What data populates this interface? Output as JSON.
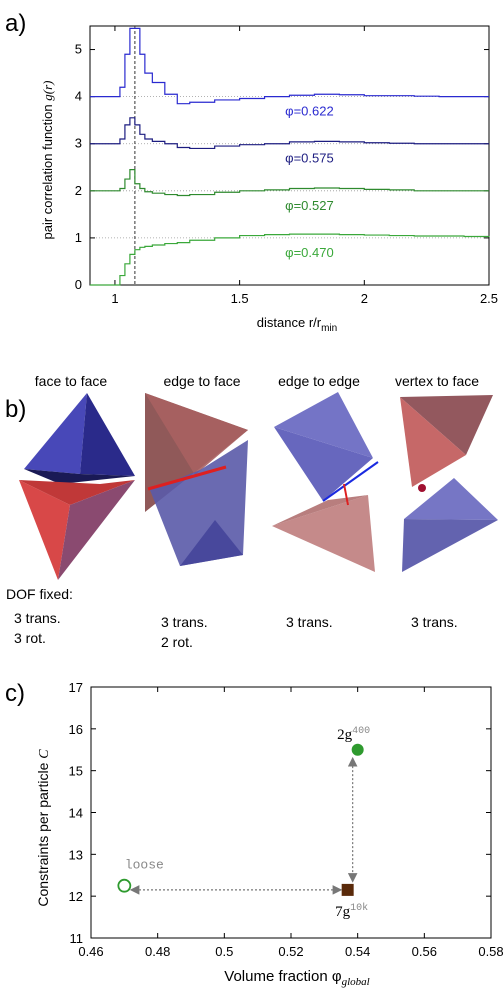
{
  "panel_a": {
    "label": "a)",
    "ylabel_text": "pair correlation function ",
    "ylabel_var": "g(r)",
    "xlabel": "distance r/r",
    "xlabel_sub": "min",
    "yticks": [
      "0",
      "1",
      "2",
      "3",
      "4",
      "5"
    ],
    "xticks": [
      "1",
      "1.5",
      "2",
      "2.5"
    ]
  },
  "panel_b": {
    "label": "b)",
    "headers": [
      "face to face",
      "edge to face",
      "edge to edge",
      "vertex to face"
    ],
    "dof_title": "DOF fixed:",
    "dof": [
      {
        "line1": "3 trans.",
        "line2": "3 rot."
      },
      {
        "line1": "3 trans.",
        "line2": "2 rot."
      },
      {
        "line1": "3 trans.",
        "line2": ""
      },
      {
        "line1": "3 trans.",
        "line2": ""
      }
    ]
  },
  "panel_c": {
    "label": "c)",
    "ylabel_text": "Constraints per particle ",
    "ylabel_var": "C",
    "xlabel_text": "Volume fraction φ",
    "xlabel_sub": "global",
    "xticks": [
      "0.46",
      "0.48",
      "0.5",
      "0.52",
      "0.54",
      "0.56",
      "0.58"
    ],
    "yticks": [
      "11",
      "12",
      "13",
      "14",
      "15",
      "16",
      "17"
    ],
    "labels": {
      "loose": "loose",
      "g400_base": "2g",
      "g400_sup": "400",
      "g10k_base": "7g",
      "g10k_sup": "10k"
    }
  },
  "colors": {
    "blue": "#2a2ad0",
    "navy": "#1c1c80",
    "green_dark": "#2e8a2e",
    "green": "#3aa83a",
    "marker_green": "#2e9a2e",
    "marker_brown": "#5a2a0a"
  },
  "chart_data": [
    {
      "type": "line",
      "panel": "a",
      "xlabel": "distance r/r_min",
      "ylabel": "pair correlation function g(r)",
      "xlim": [
        0.9,
        2.5
      ],
      "ylim": [
        0,
        5.5
      ],
      "vline_x": 1.08,
      "series": [
        {
          "name": "φ=0.622",
          "offset": 4,
          "color": "#2a2ad0",
          "x": [
            0.9,
            1.0,
            1.02,
            1.04,
            1.06,
            1.08,
            1.1,
            1.12,
            1.15,
            1.2,
            1.25,
            1.3,
            1.4,
            1.5,
            1.6,
            1.7,
            1.8,
            1.9,
            2.0,
            2.1,
            2.2,
            2.3,
            2.4,
            2.5
          ],
          "y": [
            4.0,
            4.0,
            4.2,
            4.9,
            5.45,
            5.45,
            4.9,
            4.5,
            4.3,
            4.05,
            3.85,
            3.88,
            3.93,
            3.96,
            4.0,
            4.03,
            4.05,
            4.04,
            4.02,
            4.02,
            4.01,
            4.0,
            4.0,
            4.0
          ]
        },
        {
          "name": "φ=0.575",
          "offset": 3,
          "color": "#1c1c80",
          "x": [
            0.9,
            1.0,
            1.02,
            1.04,
            1.06,
            1.08,
            1.1,
            1.12,
            1.15,
            1.2,
            1.25,
            1.3,
            1.4,
            1.5,
            1.6,
            1.7,
            1.8,
            1.9,
            2.0,
            2.1,
            2.2,
            2.3,
            2.4,
            2.5
          ],
          "y": [
            3.0,
            3.0,
            3.1,
            3.4,
            3.55,
            3.4,
            3.2,
            3.1,
            3.05,
            3.0,
            2.92,
            2.9,
            2.95,
            2.98,
            3.0,
            3.04,
            3.05,
            3.04,
            3.02,
            3.01,
            3.0,
            3.0,
            3.0,
            3.0
          ]
        },
        {
          "name": "φ=0.527",
          "offset": 2,
          "color": "#2e8a2e",
          "x": [
            0.9,
            1.0,
            1.02,
            1.04,
            1.06,
            1.08,
            1.1,
            1.12,
            1.15,
            1.2,
            1.25,
            1.3,
            1.4,
            1.5,
            1.6,
            1.7,
            1.8,
            1.9,
            2.0,
            2.1,
            2.2,
            2.3,
            2.4,
            2.5
          ],
          "y": [
            2.0,
            2.0,
            2.05,
            2.25,
            2.45,
            2.15,
            2.05,
            1.98,
            1.95,
            1.92,
            1.9,
            1.92,
            1.97,
            2.0,
            2.02,
            2.05,
            2.06,
            2.05,
            2.03,
            2.02,
            2.0,
            2.0,
            2.0,
            2.0
          ]
        },
        {
          "name": "φ=0.470",
          "offset": 1,
          "color": "#3aa83a",
          "x": [
            0.9,
            1.0,
            1.02,
            1.04,
            1.06,
            1.08,
            1.1,
            1.12,
            1.15,
            1.2,
            1.25,
            1.3,
            1.4,
            1.5,
            1.6,
            1.7,
            1.8,
            1.9,
            2.0,
            2.1,
            2.2,
            2.3,
            2.4,
            2.5
          ],
          "y": [
            0.0,
            0.0,
            0.2,
            0.45,
            0.65,
            0.75,
            0.8,
            0.82,
            0.85,
            0.88,
            0.9,
            0.95,
            1.0,
            1.05,
            1.07,
            1.08,
            1.08,
            1.07,
            1.06,
            1.05,
            1.04,
            1.04,
            1.03,
            1.02
          ]
        }
      ]
    },
    {
      "type": "scatter",
      "panel": "c",
      "xlabel": "Volume fraction φ_global",
      "ylabel": "Constraints per particle C",
      "xlim": [
        0.46,
        0.58
      ],
      "ylim": [
        11,
        17
      ],
      "points": [
        {
          "label": "loose",
          "x": 0.47,
          "y": 12.25,
          "marker": "open-circle",
          "color": "#2e9a2e"
        },
        {
          "label": "2g400",
          "x": 0.54,
          "y": 15.5,
          "marker": "circle",
          "color": "#2e9a2e"
        },
        {
          "label": "7g10k",
          "x": 0.537,
          "y": 12.15,
          "marker": "square",
          "color": "#5a2a0a"
        }
      ],
      "arrows": [
        {
          "from": [
            0.472,
            12.15
          ],
          "to": [
            0.535,
            12.15
          ],
          "double": true
        },
        {
          "from": [
            0.5385,
            15.3
          ],
          "to": [
            0.5385,
            12.35
          ],
          "double": true
        }
      ]
    }
  ]
}
